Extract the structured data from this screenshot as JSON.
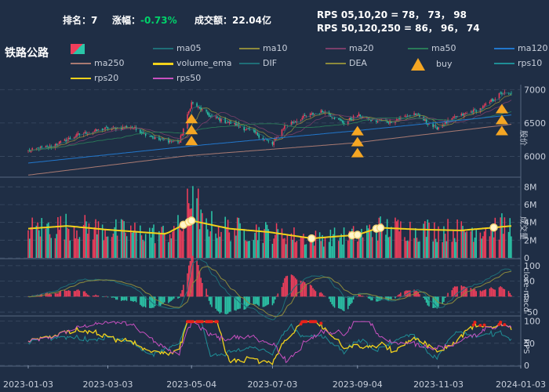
{
  "header": {
    "rank_label": "排名：",
    "rank_value": "7",
    "change_label": "涨幅：",
    "change_value": "-0.73%",
    "turnover_label": "成交额：",
    "turnover_value": "22.04亿",
    "rps_line1": "RPS 05,10,20 = 78， 73， 98",
    "rps_line2": "RPS 50,120,250 = 86， 96， 74",
    "stock_name": "铁路公路"
  },
  "legend": [
    {
      "label": "",
      "color": "#ef3e5b",
      "kind": "candle-swatch"
    },
    {
      "label": "ma05",
      "color": "#1f6e77",
      "kind": "line"
    },
    {
      "label": "ma10",
      "color": "#8d8a3c",
      "kind": "line"
    },
    {
      "label": "ma20",
      "color": "#7a3f6a",
      "kind": "line"
    },
    {
      "label": "ma50",
      "color": "#2a7a58",
      "kind": "line"
    },
    {
      "label": "ma120",
      "color": "#2277cc",
      "kind": "line"
    },
    {
      "label": "ma250",
      "color": "#a97a72",
      "kind": "line"
    },
    {
      "label": "volume_ema",
      "color": "#f2d21b",
      "kind": "line"
    },
    {
      "label": "DIF",
      "color": "#1f6e77",
      "kind": "line"
    },
    {
      "label": "DEA",
      "color": "#8d8a3c",
      "kind": "line"
    },
    {
      "label": "buy",
      "color": "#f5a623",
      "kind": "triangle"
    },
    {
      "label": "rps10",
      "color": "#1f8e96",
      "kind": "line"
    },
    {
      "label": "rps20",
      "color": "#f2d21b",
      "kind": "line"
    },
    {
      "label": "rps50",
      "color": "#c850c0",
      "kind": "line"
    }
  ],
  "colors": {
    "background": "#1f2e45",
    "up": "#ef3e5b",
    "down": "#2bc6a8",
    "grid": "#3a4a62",
    "volume_ema": "#f2d21b",
    "buy": "#f5a623",
    "rps_hot": "#e8231c"
  },
  "chart_data": {
    "type": "candlestick",
    "x_ticks": [
      "2023-01-03",
      "2023-03-03",
      "2023-05-04",
      "2023-07-03",
      "2023-09-04",
      "2023-11-03",
      "2024-01-03"
    ],
    "x_range": [
      "2023-01-03",
      "2024-01-03"
    ],
    "price_panel": {
      "ylabel": "股价",
      "ylim": [
        5700,
        7050
      ],
      "yticks": [
        6000,
        6500,
        7000
      ],
      "close_keypoints": [
        [
          "2023-01-03",
          6080
        ],
        [
          "2023-01-20",
          6150
        ],
        [
          "2023-02-10",
          6330
        ],
        [
          "2023-03-03",
          6420
        ],
        [
          "2023-03-20",
          6440
        ],
        [
          "2023-04-10",
          6250
        ],
        [
          "2023-04-25",
          6220
        ],
        [
          "2023-05-04",
          6800
        ],
        [
          "2023-05-18",
          6600
        ],
        [
          "2023-06-05",
          6480
        ],
        [
          "2023-06-20",
          6350
        ],
        [
          "2023-07-03",
          6180
        ],
        [
          "2023-07-12",
          6460
        ],
        [
          "2023-07-28",
          6600
        ],
        [
          "2023-08-10",
          6680
        ],
        [
          "2023-08-25",
          6500
        ],
        [
          "2023-09-04",
          6620
        ],
        [
          "2023-09-15",
          6530
        ],
        [
          "2023-09-28",
          6520
        ],
        [
          "2023-10-16",
          6640
        ],
        [
          "2023-11-01",
          6420
        ],
        [
          "2023-11-15",
          6580
        ],
        [
          "2023-12-05",
          6720
        ],
        [
          "2023-12-20",
          6950
        ],
        [
          "2023-12-27",
          6930
        ]
      ],
      "ma120_keypoints": [
        [
          "2023-01-03",
          5900
        ],
        [
          "2023-05-01",
          6150
        ],
        [
          "2023-09-01",
          6380
        ],
        [
          "2023-12-27",
          6620
        ]
      ],
      "ma250_keypoints": [
        [
          "2023-01-03",
          5720
        ],
        [
          "2023-05-01",
          6010
        ],
        [
          "2023-09-01",
          6200
        ],
        [
          "2023-12-27",
          6480
        ]
      ],
      "buy_signals": [
        "2023-05-04",
        "2023-09-04",
        "2023-12-20"
      ]
    },
    "volume_panel": {
      "ylabel": "成交量",
      "ylim": [
        0,
        9
      ],
      "yticks": [
        0,
        2,
        4,
        6,
        8
      ],
      "ytick_labels": [
        "0",
        "2M",
        "4M",
        "6M",
        "8M"
      ],
      "ema_keypoints": [
        [
          "2023-01-03",
          3.3
        ],
        [
          "2023-02-01",
          3.6
        ],
        [
          "2023-03-01",
          3.2
        ],
        [
          "2023-04-15",
          2.7
        ],
        [
          "2023-05-04",
          4.2
        ],
        [
          "2023-06-01",
          3.3
        ],
        [
          "2023-07-01",
          2.9
        ],
        [
          "2023-08-01",
          2.2
        ],
        [
          "2023-09-04",
          2.6
        ],
        [
          "2023-09-20",
          3.4
        ],
        [
          "2023-10-20",
          3.2
        ],
        [
          "2023-11-20",
          3.1
        ],
        [
          "2023-12-27",
          3.6
        ]
      ],
      "highlight_dates": [
        "2023-04-28",
        "2023-05-02",
        "2023-05-04",
        "2023-08-01",
        "2023-08-31",
        "2023-09-04",
        "2023-09-18",
        "2023-09-21",
        "2023-12-14"
      ]
    },
    "macd_panel": {
      "ylabel": "close-macd",
      "ylim": [
        -60,
        120
      ],
      "yticks": [
        -50,
        0,
        50,
        100
      ]
    },
    "rps_panel": {
      "ylabel": "RPS",
      "ylim": [
        0,
        110
      ],
      "yticks": [
        0,
        50,
        100
      ]
    }
  }
}
